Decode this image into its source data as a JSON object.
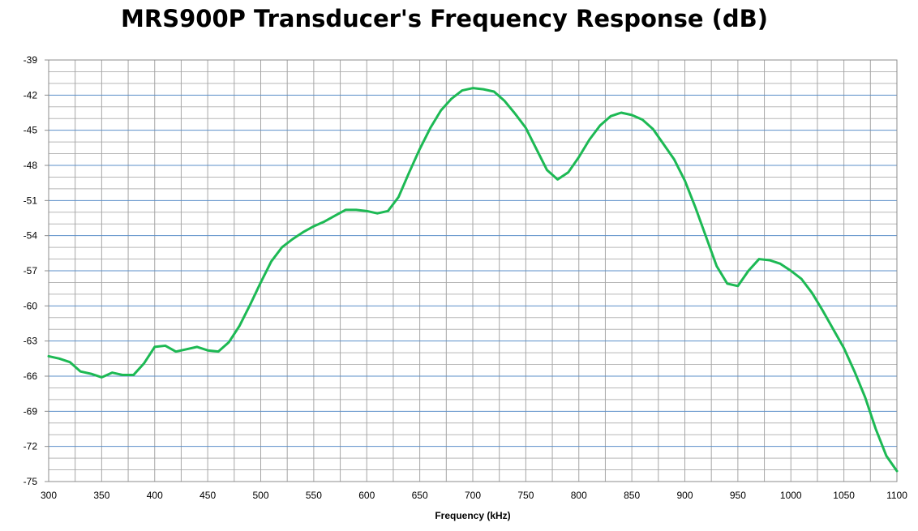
{
  "chart_data": {
    "type": "line",
    "title": "MRS900P Transducer's Frequency Response (dB)",
    "xlabel": "Frequency (kHz)",
    "ylabel": "",
    "xlim": [
      300,
      1100
    ],
    "ylim": [
      -75,
      -39
    ],
    "x_major_step": 50,
    "x_minor_step": 25,
    "y_major_step": 3,
    "y_minor_step": 1,
    "grid": true,
    "legend": "none",
    "colors": {
      "line": "#1db954",
      "major_grid_h": "#5b8fc9",
      "minor_grid_h": "#b7b7b7",
      "grid_v": "#a6a6a6",
      "frame": "#8c8c8c"
    },
    "series": [
      {
        "x": [
          300,
          310,
          320,
          330,
          340,
          350,
          360,
          370,
          380,
          390,
          400,
          410,
          420,
          430,
          440,
          450,
          460,
          470,
          480,
          490,
          500,
          510,
          520,
          530,
          540,
          550,
          560,
          570,
          580,
          590,
          600,
          610,
          620,
          630,
          640,
          650,
          660,
          670,
          680,
          690,
          700,
          710,
          720,
          730,
          740,
          750,
          760,
          770,
          780,
          790,
          800,
          810,
          820,
          830,
          840,
          850,
          860,
          870,
          880,
          890,
          900,
          910,
          920,
          930,
          940,
          950,
          960,
          970,
          980,
          990,
          1000,
          1010,
          1020,
          1030,
          1040,
          1050,
          1060,
          1070,
          1080,
          1090,
          1100
        ],
        "y": [
          -64.3,
          -64.5,
          -64.8,
          -65.6,
          -65.8,
          -66.1,
          -65.7,
          -65.9,
          -65.9,
          -64.9,
          -63.5,
          -63.4,
          -63.9,
          -63.7,
          -63.5,
          -63.8,
          -63.9,
          -63.1,
          -61.7,
          -59.9,
          -58.0,
          -56.2,
          -55.0,
          -54.3,
          -53.7,
          -53.2,
          -52.8,
          -52.3,
          -51.8,
          -51.8,
          -51.9,
          -52.1,
          -51.9,
          -50.7,
          -48.6,
          -46.6,
          -44.8,
          -43.3,
          -42.3,
          -41.6,
          -41.4,
          -41.5,
          -41.7,
          -42.5,
          -43.6,
          -44.8,
          -46.6,
          -48.4,
          -49.2,
          -48.6,
          -47.3,
          -45.8,
          -44.6,
          -43.8,
          -43.5,
          -43.7,
          -44.1,
          -44.9,
          -46.2,
          -47.5,
          -49.3,
          -51.6,
          -54.1,
          -56.6,
          -58.1,
          -58.3,
          -57.0,
          -56.0,
          -56.1,
          -56.4,
          -57.0,
          -57.7,
          -58.9,
          -60.4,
          -62.0,
          -63.6,
          -65.6,
          -67.8,
          -70.5,
          -72.8,
          -74.1
        ]
      }
    ],
    "x_tick_labels": [
      "300",
      "350",
      "400",
      "450",
      "500",
      "550",
      "600",
      "650",
      "700",
      "750",
      "800",
      "850",
      "900",
      "950",
      "1000",
      "1050",
      "1100"
    ],
    "y_tick_labels": [
      "-39",
      "-42",
      "-45",
      "-48",
      "-51",
      "-54",
      "-57",
      "-60",
      "-63",
      "-66",
      "-69",
      "-72",
      "-75"
    ]
  }
}
